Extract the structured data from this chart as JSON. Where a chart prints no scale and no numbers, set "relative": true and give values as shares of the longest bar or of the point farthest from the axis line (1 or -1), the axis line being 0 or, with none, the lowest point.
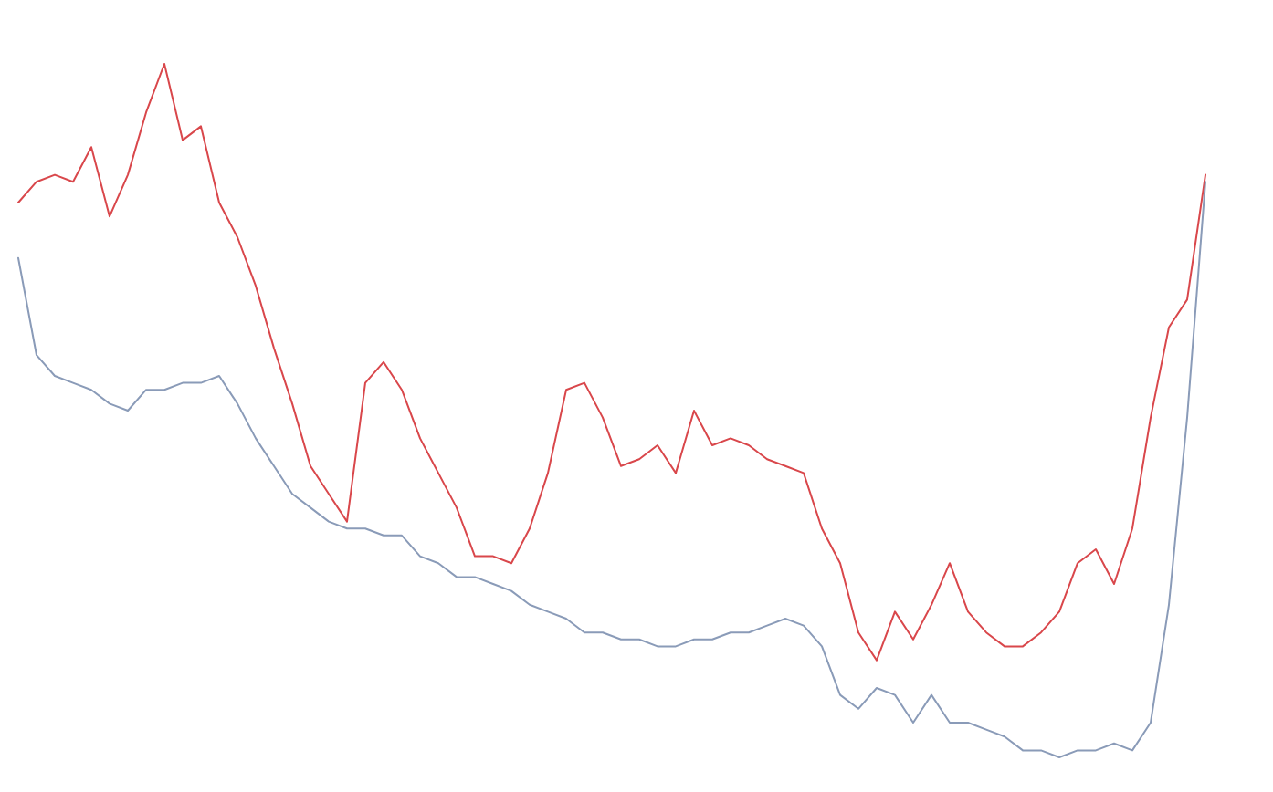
{
  "chart_data": {
    "type": "line",
    "relative": true,
    "categories": [
      null,
      null,
      null,
      null,
      null,
      null,
      null,
      null,
      null,
      null,
      null,
      null,
      null,
      null,
      null,
      null,
      null,
      null,
      null,
      null,
      null,
      null,
      null,
      null,
      null,
      null,
      null,
      null,
      null,
      null,
      null,
      null,
      null,
      null,
      null,
      null,
      null,
      null,
      null,
      null,
      null,
      null,
      null,
      null,
      null,
      null,
      null,
      null,
      null,
      null,
      null,
      null,
      null,
      null,
      null,
      null,
      null,
      null,
      null,
      null,
      null,
      null,
      null,
      null,
      null,
      null
    ],
    "series": [
      {
        "color": "#d9474b",
        "values": [
          0.8,
          0.83,
          0.84,
          0.83,
          0.88,
          0.78,
          0.84,
          0.93,
          1,
          0.89,
          0.91,
          0.8,
          0.75,
          0.68,
          0.59,
          0.51,
          0.42,
          0.38,
          0.34,
          0.54,
          0.57,
          0.53,
          0.46,
          0.41,
          0.36,
          0.29,
          0.29,
          0.28,
          0.33,
          0.41,
          0.53,
          0.54,
          0.49,
          0.42,
          0.43,
          0.45,
          0.41,
          0.5,
          0.45,
          0.46,
          0.45,
          0.43,
          0.42,
          0.41,
          0.33,
          0.28,
          0.18,
          0.14,
          0.21,
          0.17,
          0.22,
          0.28,
          0.21,
          0.18,
          0.16,
          0.16,
          0.18,
          0.21,
          0.28,
          0.3,
          0.25,
          0.33,
          0.49,
          0.62,
          0.66,
          0.84
        ]
      },
      {
        "color": "#8a9bb8",
        "values": [
          0.72,
          0.58,
          0.55,
          0.54,
          0.53,
          0.51,
          0.5,
          0.53,
          0.53,
          0.54,
          0.54,
          0.55,
          0.51,
          0.46,
          0.42,
          0.38,
          0.36,
          0.34,
          0.33,
          0.33,
          0.32,
          0.32,
          0.29,
          0.28,
          0.26,
          0.26,
          0.25,
          0.24,
          0.22,
          0.21,
          0.2,
          0.18,
          0.18,
          0.17,
          0.17,
          0.16,
          0.16,
          0.17,
          0.17,
          0.18,
          0.18,
          0.19,
          0.2,
          0.19,
          0.16,
          0.09,
          0.07,
          0.1,
          0.09,
          0.05,
          0.09,
          0.05,
          0.05,
          0.04,
          0.03,
          0.01,
          0.01,
          0.0,
          0.01,
          0.01,
          0.02,
          0.01,
          0.05,
          0.22,
          0.49,
          0.83
        ]
      }
    ]
  }
}
